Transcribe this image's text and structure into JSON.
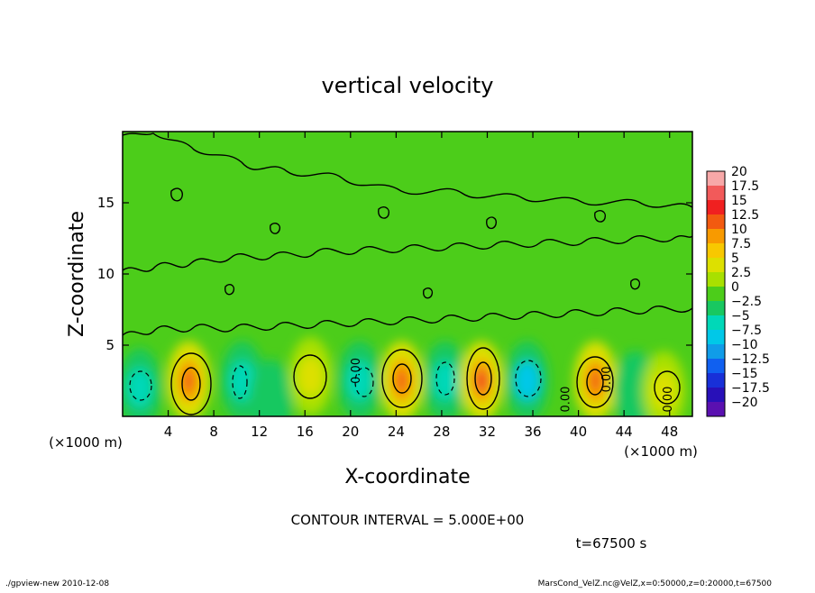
{
  "chart_data": {
    "type": "heatmap",
    "title": "vertical velocity",
    "xlabel": "X-coordinate",
    "ylabel": "Z-coordinate",
    "x_unit_left": "(×1000 m)",
    "x_unit_right": "(×1000 m)",
    "xlim": [
      0,
      50
    ],
    "ylim": [
      0,
      20
    ],
    "x_ticks": [
      4,
      8,
      12,
      16,
      20,
      24,
      28,
      32,
      36,
      40,
      44,
      48
    ],
    "y_ticks": [
      5,
      10,
      15
    ],
    "contour_interval_label": "CONTOUR INTERVAL = 5.000E+00",
    "time_label": "t=67500 s",
    "footer_left": "./gpview-new  2010-12-08",
    "footer_right": "MarsCond_VelZ.nc@VelZ,x=0:50000,z=0:20000,t=67500",
    "contour_labels": [
      {
        "text": "0.00",
        "x": 20.8,
        "z": 3.2
      },
      {
        "text": "0.00",
        "x": 39.2,
        "z": 1.2
      },
      {
        "text": "0.00",
        "x": 42.8,
        "z": 2.6
      },
      {
        "text": "0.00",
        "x": 48.2,
        "z": 1.2
      }
    ],
    "cells": [
      {
        "x": 1.5,
        "z": 2.0,
        "value": -5.5
      },
      {
        "x": 5.8,
        "z": 2.5,
        "value": 9.0
      },
      {
        "x": 10.5,
        "z": 2.5,
        "value": -5.0
      },
      {
        "x": 13.0,
        "z": 1.2,
        "value": -3.5
      },
      {
        "x": 16.5,
        "z": 2.8,
        "value": 5.5
      },
      {
        "x": 20.8,
        "z": 2.5,
        "value": -4.5
      },
      {
        "x": 24.5,
        "z": 2.5,
        "value": 9.5
      },
      {
        "x": 28.3,
        "z": 2.5,
        "value": -6.0
      },
      {
        "x": 31.5,
        "z": 2.5,
        "value": 11.0
      },
      {
        "x": 35.5,
        "z": 2.5,
        "value": -6.5
      },
      {
        "x": 41.5,
        "z": 2.5,
        "value": 9.0
      },
      {
        "x": 45.0,
        "z": 1.8,
        "value": -3.0
      },
      {
        "x": 47.5,
        "z": 1.8,
        "value": 5.5
      }
    ],
    "colorbar": {
      "labels": [
        "20",
        "17.5",
        "15",
        "12.5",
        "10",
        "7.5",
        "5",
        "2.5",
        "0",
        "−2.5",
        "−5",
        "−7.5",
        "−10",
        "−12.5",
        "−15",
        "−17.5",
        "−20"
      ],
      "levels": [
        20,
        17.5,
        15,
        12.5,
        10,
        7.5,
        5,
        2.5,
        0,
        -2.5,
        -5,
        -7.5,
        -10,
        -12.5,
        -15,
        -17.5,
        -20
      ],
      "colors": [
        "#f7a8a8",
        "#f25a5a",
        "#f02020",
        "#f25a10",
        "#f89a00",
        "#f8c800",
        "#dde000",
        "#a8e000",
        "#4ccd1a",
        "#18c860",
        "#00d8b8",
        "#00c8e8",
        "#109ce8",
        "#1060f0",
        "#1830d8",
        "#2810b8",
        "#5a10b0"
      ]
    },
    "grid": false
  }
}
